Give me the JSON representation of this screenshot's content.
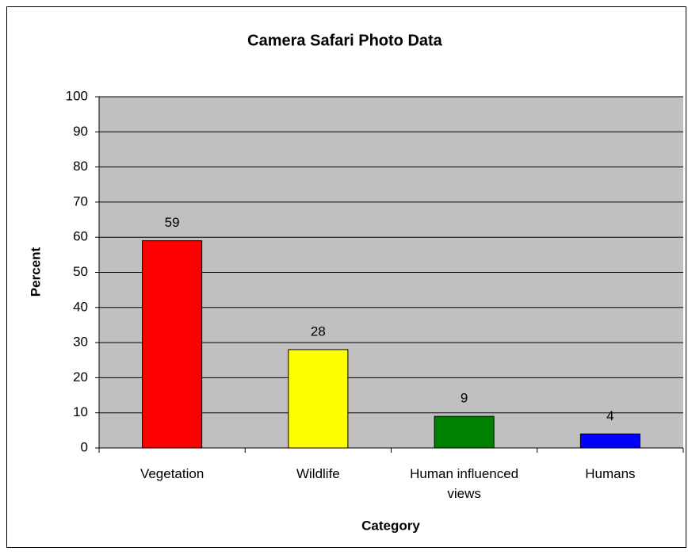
{
  "chart_data": {
    "type": "bar",
    "title": "Camera Safari Photo Data",
    "categories": [
      "Vegetation",
      "Wildlife",
      "Human influenced views",
      "Humans"
    ],
    "values": [
      59,
      28,
      9,
      4
    ],
    "colors": [
      "#ff0000",
      "#ffff00",
      "#008000",
      "#0000ff"
    ],
    "xlabel": "Category",
    "ylabel": "Percent",
    "ylim": [
      0,
      100
    ],
    "yticks": [
      0,
      10,
      20,
      30,
      40,
      50,
      60,
      70,
      80,
      90,
      100
    ],
    "grid": true
  }
}
